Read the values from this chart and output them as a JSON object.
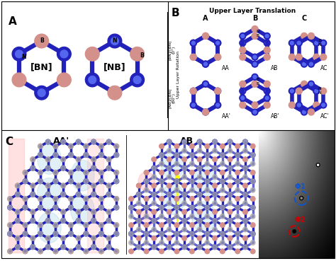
{
  "panel_A_label": "A",
  "panel_B_label": "B",
  "panel_C_label": "C",
  "BN_label": "[BN]",
  "NB_label": "[NB]",
  "upper_layer_translation": "Upper Layer Translation",
  "upper_layer_rotation": "Upper Layer Rotation",
  "row1_label": "[BN]/[BN]\n(0°)",
  "row2_label": "[NB]/[BN]\n(60°)",
  "col_labels": [
    "A",
    "B",
    "C"
  ],
  "stacking_labels_row1": [
    "AA",
    "AB",
    "AC"
  ],
  "stacking_labels_row2": [
    "AA'",
    "AB'",
    "AC'"
  ],
  "AA_prime_label": "AA'",
  "AB_label": "AB",
  "phi1_label": "Φ1",
  "phi2_label": "Φ2",
  "boron_color": "#d4908a",
  "nitrogen_color": "#2222bb",
  "panel_bg": "#ffffff",
  "red_highlight": "#ffaaaa",
  "blue_highlight": "#aad4e8",
  "red_circle_color": "#cc0000",
  "blue_circle_color": "#1155cc",
  "gray_atom": "#aaaaaa",
  "bond_color": "#2222bb",
  "fig_border": "#888888"
}
